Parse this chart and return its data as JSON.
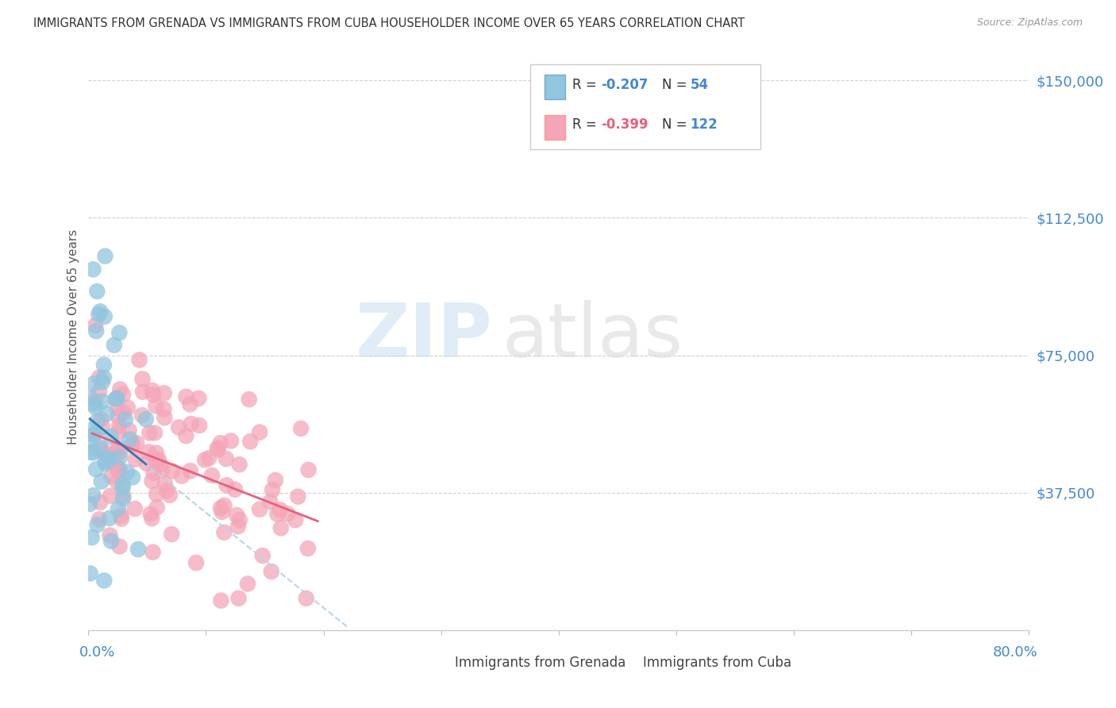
{
  "title": "IMMIGRANTS FROM GRENADA VS IMMIGRANTS FROM CUBA HOUSEHOLDER INCOME OVER 65 YEARS CORRELATION CHART",
  "source": "Source: ZipAtlas.com",
  "ylabel": "Householder Income Over 65 years",
  "xlim": [
    0.0,
    0.8
  ],
  "ylim": [
    0,
    160000
  ],
  "yticks": [
    37500,
    75000,
    112500,
    150000
  ],
  "ytick_labels": [
    "$37,500",
    "$75,000",
    "$112,500",
    "$150,000"
  ],
  "legend_grenada_R": "-0.207",
  "legend_grenada_N": "54",
  "legend_cuba_R": "-0.399",
  "legend_cuba_N": "122",
  "grenada_color": "#92c5de",
  "cuba_color": "#f4a6b8",
  "grenada_line_color": "#2c7bb6",
  "cuba_line_color": "#e8607a",
  "grenada_dashed_color": "#b8d4e8",
  "background_color": "#ffffff",
  "watermark_zip": "ZIP",
  "watermark_atlas": "atlas",
  "grid_color": "#cccccc",
  "title_color": "#333333",
  "source_color": "#999999",
  "label_color": "#555555",
  "axis_label_color": "#4488cc",
  "legend_R_color": "#e8607a",
  "legend_text_color": "#333333",
  "legend_N_color": "#4488cc"
}
